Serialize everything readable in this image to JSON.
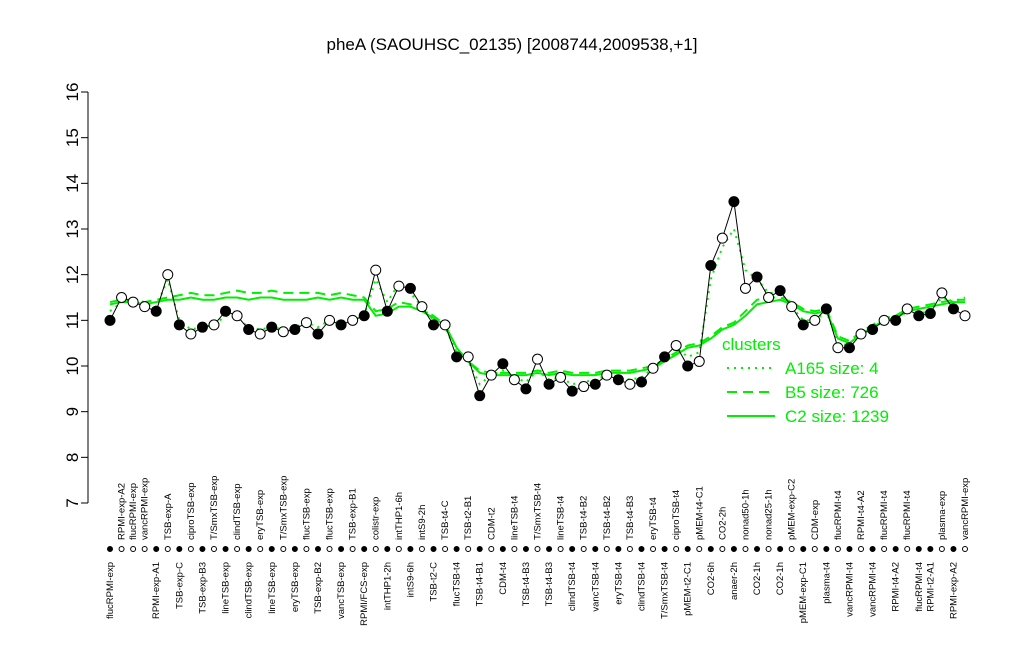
{
  "chart_data": {
    "type": "line",
    "title": "pheA (SAOUHSC_02135) [2008744,2009538,+1]",
    "ylim": [
      7,
      16
    ],
    "yticks": [
      7,
      8,
      9,
      10,
      11,
      12,
      13,
      14,
      15,
      16
    ],
    "categories": [
      "flucRPMI-exp",
      "RPMI-exp-A2",
      "flucRPMI-exp",
      "vancRPMI-exp",
      "RPMI-exp-A1",
      "TSB-exp-A",
      "TSB-exp-C",
      "ciproTSB-exp",
      "TSB-exp-B3",
      "T/SmxTSB-exp",
      "lineTSB-exp",
      "clindTSB-exp",
      "clindTSB-exp",
      "eryTSB-exp",
      "lineTSB-exp",
      "T/SmxTSB-exp",
      "eryTSB-exp",
      "flucTSB-exp",
      "TSB-exp-B2",
      "flucTSB-exp",
      "vancTSB-exp",
      "TSB-exp-B1",
      "RPMI/FCS-exp",
      "colistr-exp",
      "intTHP1-2h",
      "intTHP1-6h",
      "intS9-6h",
      "intS9-2h",
      "TSB-t2-C",
      "TSB-t4-C",
      "flucTSB-t4",
      "TSB-t2-B1",
      "TSB-t4-B1",
      "CDM-t2",
      "CDM-t4",
      "lineTSB-t4",
      "TSB-t4-B3",
      "T/SmxTSB-t4",
      "TSB-t4-B3",
      "lineTSB-t4",
      "clindTSB-t4",
      "TSB-t4-B2",
      "vancTSB-t4",
      "TSB-t4-B2",
      "eryTSB-t4",
      "TSB-t4-B3",
      "clindTSB-t4",
      "eryTSB-t4",
      "T/SmxTSB-t4",
      "ciproTSB-t4",
      "pMEM-t2-C1",
      "pMEM-t4-C1",
      "CO2-6h",
      "CO2-2h",
      "anaer-2h",
      "nonad50-1h",
      "CO2-1h",
      "nonad25-1h",
      "CO2-1h",
      "pMEM-exp-C2",
      "pMEM-exp-C1",
      "CDM-exp",
      "plasma-t4",
      "flucRPMI-t4",
      "vancRPMI-t4",
      "RPMI-t4-A2",
      "vancRPMI-t4",
      "flucRPMI-t4",
      "RPMI-t4-A2",
      "flucRPMI-t4",
      "flucRPMI-t4",
      "RPMI-t2-A1",
      "plasma-exp",
      "RPMI-exp-A2",
      "vancRPMI-exp"
    ],
    "values": [
      11.0,
      11.5,
      11.4,
      11.3,
      11.2,
      12.0,
      10.9,
      10.7,
      10.85,
      10.9,
      11.2,
      11.1,
      10.8,
      10.7,
      10.85,
      10.75,
      10.8,
      10.95,
      10.7,
      11.0,
      10.9,
      11.0,
      11.1,
      12.1,
      11.2,
      11.75,
      11.7,
      11.3,
      10.9,
      10.9,
      10.2,
      10.2,
      9.35,
      9.8,
      10.05,
      9.7,
      9.5,
      10.15,
      9.6,
      9.75,
      9.45,
      9.55,
      9.6,
      9.8,
      9.7,
      9.6,
      9.65,
      9.95,
      10.2,
      10.45,
      10.0,
      10.1,
      12.2,
      12.8,
      13.6,
      11.7,
      11.95,
      11.5,
      11.65,
      11.3,
      10.9,
      11.0,
      11.25,
      10.4,
      10.4,
      10.7,
      10.8,
      11.0,
      11.0,
      11.25,
      11.1,
      11.15,
      11.6,
      11.25,
      11.1
    ],
    "filled": [
      true,
      false,
      false,
      false,
      true,
      false,
      true,
      false,
      true,
      false,
      true,
      false,
      true,
      false,
      true,
      false,
      true,
      false,
      true,
      false,
      true,
      false,
      true,
      false,
      true,
      false,
      true,
      false,
      true,
      false,
      true,
      false,
      true,
      false,
      true,
      false,
      true,
      false,
      true,
      false,
      true,
      false,
      true,
      false,
      true,
      false,
      true,
      false,
      true,
      false,
      true,
      false,
      true,
      false,
      true,
      false,
      true,
      false,
      true,
      false,
      true,
      false,
      true,
      false,
      true,
      false,
      true,
      false,
      true,
      false,
      true,
      true,
      false,
      true,
      false
    ],
    "legend_title": "clusters",
    "series": [
      {
        "name": "A165 size: 4",
        "color": "#00ee00",
        "dash": "dotted",
        "values": [
          11.2,
          11.4,
          11.4,
          11.35,
          11.3,
          11.9,
          11.0,
          10.8,
          10.85,
          10.9,
          11.1,
          11.05,
          10.85,
          10.8,
          10.85,
          10.8,
          10.85,
          10.95,
          10.85,
          11.0,
          10.95,
          11.0,
          11.1,
          11.9,
          11.4,
          11.8,
          11.6,
          11.3,
          11.0,
          10.85,
          10.3,
          10.1,
          9.6,
          9.8,
          9.9,
          9.75,
          9.65,
          9.9,
          9.7,
          9.75,
          9.6,
          9.65,
          9.7,
          9.8,
          9.75,
          9.7,
          9.75,
          9.95,
          10.15,
          10.4,
          10.2,
          10.3,
          11.9,
          12.6,
          13.0,
          12.1,
          11.9,
          11.6,
          11.6,
          11.3,
          11.0,
          11.0,
          11.2,
          10.5,
          10.45,
          10.7,
          10.8,
          11.0,
          11.0,
          11.2,
          11.15,
          11.2,
          11.5,
          11.4,
          11.5
        ]
      },
      {
        "name": "B5 size: 726",
        "color": "#00ee00",
        "dash": "dashed",
        "values": [
          11.4,
          11.45,
          11.45,
          11.4,
          11.45,
          11.5,
          11.55,
          11.6,
          11.55,
          11.55,
          11.6,
          11.65,
          11.6,
          11.6,
          11.65,
          11.6,
          11.6,
          11.6,
          11.6,
          11.55,
          11.6,
          11.55,
          11.5,
          11.2,
          11.25,
          11.4,
          11.35,
          11.25,
          11.1,
          10.9,
          10.4,
          10.1,
          9.9,
          9.85,
          9.85,
          9.85,
          9.85,
          9.9,
          9.85,
          9.9,
          9.85,
          9.85,
          9.85,
          9.9,
          9.9,
          9.9,
          9.95,
          10.0,
          10.15,
          10.3,
          10.45,
          10.5,
          10.65,
          10.85,
          10.95,
          11.2,
          11.45,
          11.5,
          11.5,
          11.4,
          11.25,
          11.2,
          11.25,
          10.65,
          10.55,
          10.75,
          10.9,
          11.05,
          11.1,
          11.25,
          11.3,
          11.35,
          11.4,
          11.45,
          11.45
        ]
      },
      {
        "name": "C2 size: 1239",
        "color": "#00ee00",
        "dash": "solid",
        "values": [
          11.35,
          11.4,
          11.4,
          11.35,
          11.4,
          11.45,
          11.45,
          11.5,
          11.45,
          11.45,
          11.5,
          11.5,
          11.45,
          11.5,
          11.5,
          11.45,
          11.45,
          11.45,
          11.5,
          11.45,
          11.5,
          11.45,
          11.45,
          11.1,
          11.15,
          11.3,
          11.3,
          11.2,
          11.05,
          10.9,
          10.4,
          10.1,
          9.85,
          9.8,
          9.8,
          9.8,
          9.8,
          9.85,
          9.8,
          9.85,
          9.8,
          9.8,
          9.8,
          9.85,
          9.85,
          9.85,
          9.9,
          9.95,
          10.1,
          10.25,
          10.4,
          10.45,
          10.6,
          10.8,
          10.9,
          11.1,
          11.35,
          11.4,
          11.45,
          11.35,
          11.2,
          11.15,
          11.2,
          10.6,
          10.5,
          10.7,
          10.85,
          11.0,
          11.05,
          11.2,
          11.25,
          11.3,
          11.35,
          11.4,
          11.4
        ]
      }
    ]
  }
}
